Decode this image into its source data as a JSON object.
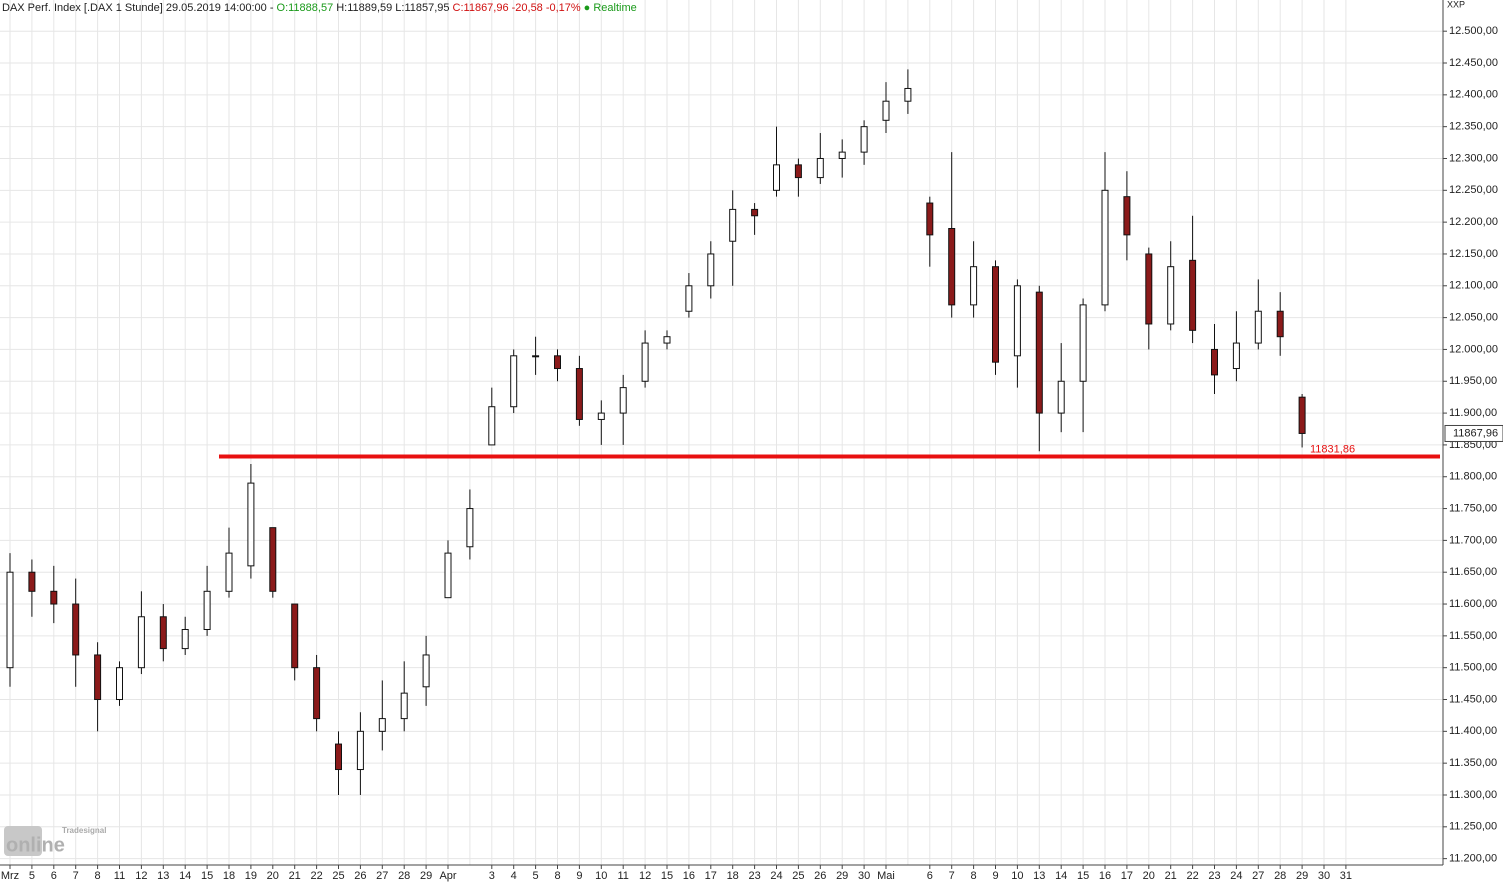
{
  "chart_data": {
    "type": "candlestick",
    "header": {
      "name": "DAX Perf. Index [.DAX 1 Stunde] 29.05.2019 14:00:00 -",
      "open": "O:11888,57",
      "high": "H:11889,59",
      "low": "L:11857,95",
      "close": "C:11867,96",
      "change": "-20,58",
      "change_pct": "-0,17%",
      "status": "Realtime"
    },
    "axis_label": "XXP",
    "logo": {
      "brand": "Tradesignal",
      "name": "online"
    },
    "categories": [
      "Mrz",
      "5",
      "6",
      "7",
      "8",
      "11",
      "12",
      "13",
      "14",
      "15",
      "18",
      "19",
      "20",
      "21",
      "22",
      "25",
      "26",
      "27",
      "28",
      "29",
      "Apr",
      null,
      "3",
      "4",
      "5",
      "8",
      "9",
      "10",
      "11",
      "12",
      "15",
      "16",
      "17",
      "18",
      "23",
      "24",
      "25",
      "26",
      "29",
      "30",
      "Mai",
      null,
      "6",
      "7",
      "8",
      "9",
      "10",
      "13",
      "14",
      "15",
      "16",
      "17",
      "20",
      "21",
      "22",
      "23",
      "24",
      "27",
      "28",
      "29",
      "30",
      "31"
    ],
    "open": [
      11500,
      11650,
      11620,
      11600,
      11520,
      11450,
      11500,
      11580,
      11530,
      11560,
      11620,
      11660,
      11720,
      11600,
      11500,
      11380,
      11340,
      11400,
      11420,
      11470,
      11610,
      11690,
      11850,
      11910,
      11990,
      11990,
      11970,
      11890,
      11900,
      11950,
      12010,
      12060,
      12100,
      12170,
      12220,
      12250,
      12290,
      12270,
      12300,
      12310,
      12360,
      12390,
      12230,
      12190,
      12070,
      12130,
      11990,
      12090,
      11900,
      11950,
      12070,
      12240,
      12150,
      12040,
      12140,
      12000,
      11970,
      12010,
      12060,
      11925,
      null,
      null
    ],
    "high": [
      11680,
      11670,
      11660,
      11640,
      11540,
      11510,
      11620,
      11600,
      11580,
      11660,
      11720,
      11820,
      11720,
      11600,
      11520,
      11400,
      11430,
      11480,
      11510,
      11550,
      11700,
      11780,
      11940,
      12000,
      12020,
      12000,
      11990,
      11920,
      11960,
      12030,
      12030,
      12120,
      12170,
      12250,
      12230,
      12350,
      12300,
      12340,
      12330,
      12360,
      12420,
      12440,
      12240,
      12310,
      12170,
      12140,
      12110,
      12100,
      12010,
      12080,
      12310,
      12280,
      12160,
      12170,
      12210,
      12040,
      12060,
      12110,
      12090,
      11930,
      null,
      null
    ],
    "low": [
      11470,
      11580,
      11570,
      11470,
      11400,
      11440,
      11490,
      11510,
      11520,
      11550,
      11610,
      11640,
      11610,
      11480,
      11400,
      11300,
      11300,
      11370,
      11400,
      11440,
      11610,
      11670,
      11850,
      11900,
      11960,
      11950,
      11880,
      11850,
      11850,
      11940,
      12000,
      12050,
      12080,
      12100,
      12180,
      12240,
      12240,
      12260,
      12270,
      12290,
      12340,
      12370,
      12130,
      12050,
      12050,
      11960,
      11940,
      11840,
      11870,
      11870,
      12060,
      12140,
      12000,
      12030,
      12010,
      11930,
      11950,
      12000,
      11990,
      11846,
      null,
      null
    ],
    "close": [
      11650,
      11620,
      11600,
      11520,
      11450,
      11500,
      11580,
      11530,
      11560,
      11620,
      11680,
      11790,
      11620,
      11500,
      11420,
      11340,
      11400,
      11420,
      11460,
      11520,
      11680,
      11750,
      11910,
      11990,
      11990,
      11970,
      11890,
      11900,
      11940,
      12010,
      12020,
      12100,
      12150,
      12220,
      12210,
      12290,
      12270,
      12300,
      12310,
      12350,
      12390,
      12410,
      12180,
      12070,
      12130,
      11980,
      12100,
      11900,
      11950,
      12070,
      12250,
      12180,
      12040,
      12130,
      12030,
      11960,
      12010,
      12060,
      12020,
      11868,
      null,
      null
    ],
    "up_color": "#ffffff",
    "down_color": "#8b1a1a",
    "support": {
      "value": 11831.86,
      "label": "11831,86",
      "color": "#e81010"
    },
    "last_price": {
      "value": 11867.96,
      "label": "11867,96"
    },
    "ylim": [
      11190,
      12549
    ],
    "yticks": [
      {
        "value": 11200,
        "label": "11.200,00"
      },
      {
        "value": 11250,
        "label": "11.250,00"
      },
      {
        "value": 11300,
        "label": "11.300,00"
      },
      {
        "value": 11350,
        "label": "11.350,00"
      },
      {
        "value": 11400,
        "label": "11.400,00"
      },
      {
        "value": 11450,
        "label": "11.450,00"
      },
      {
        "value": 11500,
        "label": "11.500,00"
      },
      {
        "value": 11550,
        "label": "11.550,00"
      },
      {
        "value": 11600,
        "label": "11.600,00"
      },
      {
        "value": 11650,
        "label": "11.650,00"
      },
      {
        "value": 11700,
        "label": "11.700,00"
      },
      {
        "value": 11750,
        "label": "11.750,00"
      },
      {
        "value": 11800,
        "label": "11.800,00"
      },
      {
        "value": 11850,
        "label": "11.850,00"
      },
      {
        "value": 11900,
        "label": "11.900,00"
      },
      {
        "value": 11950,
        "label": "11.950,00"
      },
      {
        "value": 12000,
        "label": "12.000,00"
      },
      {
        "value": 12050,
        "label": "12.050,00"
      },
      {
        "value": 12100,
        "label": "12.100,00"
      },
      {
        "value": 12150,
        "label": "12.150,00"
      },
      {
        "value": 12200,
        "label": "12.200,00"
      },
      {
        "value": 12250,
        "label": "12.250,00"
      },
      {
        "value": 12300,
        "label": "12.300,00"
      },
      {
        "value": 12350,
        "label": "12.350,00"
      },
      {
        "value": 12400,
        "label": "12.400,00"
      },
      {
        "value": 12450,
        "label": "12.450,00"
      },
      {
        "value": 12500,
        "label": "12.500,00"
      }
    ],
    "grid": true
  }
}
